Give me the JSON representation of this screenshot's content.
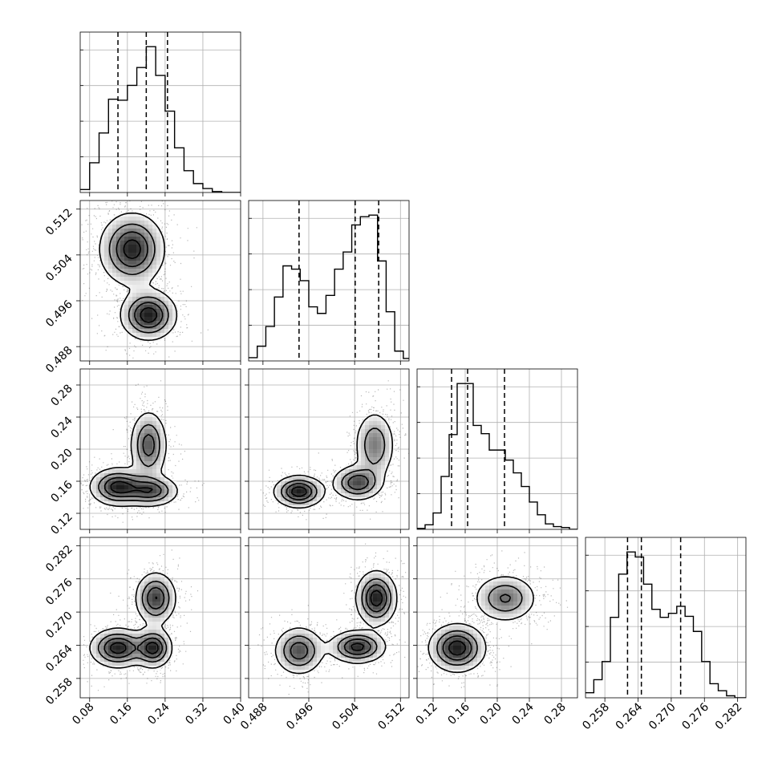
{
  "chart_data": {
    "type": "corner",
    "grid": true,
    "parameters": [
      {
        "index": 0,
        "range": [
          0.06,
          0.4
        ],
        "ticks": [
          0.08,
          0.16,
          0.24,
          0.32,
          0.4
        ],
        "tick_labels": [
          "0.08",
          "0.16",
          "0.24",
          "0.32",
          "0.40"
        ],
        "quantiles": [
          0.14,
          0.2,
          0.245
        ],
        "hist_bins": [
          0.06,
          0.08,
          0.1,
          0.12,
          0.14,
          0.16,
          0.18,
          0.2,
          0.22,
          0.24,
          0.26,
          0.28,
          0.3,
          0.32,
          0.34,
          0.36,
          0.38,
          0.4
        ],
        "hist_counts": [
          0.03,
          0.3,
          0.6,
          0.94,
          0.93,
          1.08,
          1.26,
          1.47,
          1.18,
          0.82,
          0.45,
          0.22,
          0.09,
          0.04,
          0.01,
          0.0,
          0.0
        ]
      },
      {
        "index": 1,
        "range": [
          0.4855,
          0.5135
        ],
        "ticks": [
          0.488,
          0.496,
          0.504,
          0.512
        ],
        "tick_labels": [
          "0.488",
          "0.496",
          "0.504",
          "0.512"
        ],
        "quantiles": [
          0.4943,
          0.5041,
          0.5082
        ],
        "hist_bins": [
          0.4855,
          0.487,
          0.4885,
          0.49,
          0.4915,
          0.493,
          0.4945,
          0.496,
          0.4975,
          0.499,
          0.5005,
          0.502,
          0.5035,
          0.505,
          0.5065,
          0.508,
          0.5095,
          0.511,
          0.5125,
          0.5135
        ],
        "hist_counts": [
          0.04,
          0.18,
          0.42,
          0.78,
          1.16,
          1.12,
          0.98,
          0.66,
          0.58,
          0.8,
          1.12,
          1.33,
          1.66,
          1.76,
          1.78,
          1.22,
          0.6,
          0.12,
          0.03
        ]
      },
      {
        "index": 2,
        "range": [
          0.1,
          0.3
        ],
        "ticks": [
          0.12,
          0.16,
          0.2,
          0.24,
          0.28
        ],
        "tick_labels": [
          "0.12",
          "0.16",
          "0.20",
          "0.24",
          "0.28"
        ],
        "quantiles": [
          0.143,
          0.163,
          0.209
        ],
        "hist_bins": [
          0.1,
          0.11,
          0.12,
          0.13,
          0.14,
          0.15,
          0.16,
          0.17,
          0.18,
          0.19,
          0.2,
          0.21,
          0.22,
          0.23,
          0.24,
          0.25,
          0.26,
          0.27,
          0.28,
          0.29,
          0.3
        ],
        "hist_counts": [
          0.01,
          0.05,
          0.18,
          0.58,
          1.04,
          1.6,
          1.6,
          1.14,
          1.05,
          0.87,
          0.87,
          0.76,
          0.62,
          0.47,
          0.3,
          0.16,
          0.06,
          0.03,
          0.02,
          0.0
        ]
      },
      {
        "index": 3,
        "range": [
          0.2545,
          0.2835
        ],
        "ticks": [
          0.258,
          0.264,
          0.27,
          0.276,
          0.282
        ],
        "tick_labels": [
          "0.258",
          "0.264",
          "0.270",
          "0.276",
          "0.282"
        ],
        "quantiles": [
          0.2621,
          0.2646,
          0.2717
        ],
        "hist_bins": [
          0.2545,
          0.256,
          0.2575,
          0.259,
          0.2605,
          0.262,
          0.2635,
          0.265,
          0.2665,
          0.268,
          0.2695,
          0.271,
          0.2725,
          0.274,
          0.2755,
          0.277,
          0.2785,
          0.28,
          0.2815,
          0.2835
        ],
        "hist_counts": [
          0.05,
          0.18,
          0.36,
          0.8,
          1.23,
          1.45,
          1.4,
          1.13,
          0.88,
          0.8,
          0.84,
          0.91,
          0.81,
          0.66,
          0.36,
          0.14,
          0.07,
          0.02,
          0.0
        ]
      }
    ],
    "pairs": [
      {
        "x": 0,
        "y": 1,
        "modes": [
          {
            "mx": 0.17,
            "my": 0.505,
            "sx": 0.035,
            "sy": 0.0032,
            "w": 0.62
          },
          {
            "mx": 0.205,
            "my": 0.4935,
            "sx": 0.03,
            "sy": 0.0022,
            "w": 0.38
          }
        ]
      },
      {
        "x": 0,
        "y": 2,
        "modes": [
          {
            "mx": 0.14,
            "my": 0.153,
            "sx": 0.03,
            "sy": 0.012,
            "w": 0.38
          },
          {
            "mx": 0.21,
            "my": 0.148,
            "sx": 0.03,
            "sy": 0.01,
            "w": 0.26
          },
          {
            "mx": 0.205,
            "my": 0.205,
            "sx": 0.02,
            "sy": 0.022,
            "w": 0.36
          }
        ]
      },
      {
        "x": 1,
        "y": 2,
        "modes": [
          {
            "mx": 0.4943,
            "my": 0.147,
            "sx": 0.0022,
            "sy": 0.01,
            "w": 0.34
          },
          {
            "mx": 0.5045,
            "my": 0.158,
            "sx": 0.0022,
            "sy": 0.011,
            "w": 0.3
          },
          {
            "mx": 0.5075,
            "my": 0.205,
            "sx": 0.0018,
            "sy": 0.022,
            "w": 0.36
          }
        ]
      },
      {
        "x": 0,
        "y": 3,
        "modes": [
          {
            "mx": 0.14,
            "my": 0.2635,
            "sx": 0.03,
            "sy": 0.0018,
            "w": 0.4
          },
          {
            "mx": 0.22,
            "my": 0.2725,
            "sx": 0.022,
            "sy": 0.0024,
            "w": 0.34
          },
          {
            "mx": 0.215,
            "my": 0.2635,
            "sx": 0.02,
            "sy": 0.0018,
            "w": 0.26
          }
        ]
      },
      {
        "x": 1,
        "y": 3,
        "modes": [
          {
            "mx": 0.4943,
            "my": 0.263,
            "sx": 0.0022,
            "sy": 0.0022,
            "w": 0.32
          },
          {
            "mx": 0.5045,
            "my": 0.2637,
            "sx": 0.0025,
            "sy": 0.0015,
            "w": 0.3
          },
          {
            "mx": 0.5078,
            "my": 0.2725,
            "sx": 0.0018,
            "sy": 0.0025,
            "w": 0.38
          }
        ]
      },
      {
        "x": 2,
        "y": 3,
        "modes": [
          {
            "mx": 0.15,
            "my": 0.2635,
            "sx": 0.018,
            "sy": 0.0022,
            "w": 0.58
          },
          {
            "mx": 0.21,
            "my": 0.2725,
            "sx": 0.02,
            "sy": 0.0022,
            "w": 0.42
          }
        ]
      }
    ]
  }
}
